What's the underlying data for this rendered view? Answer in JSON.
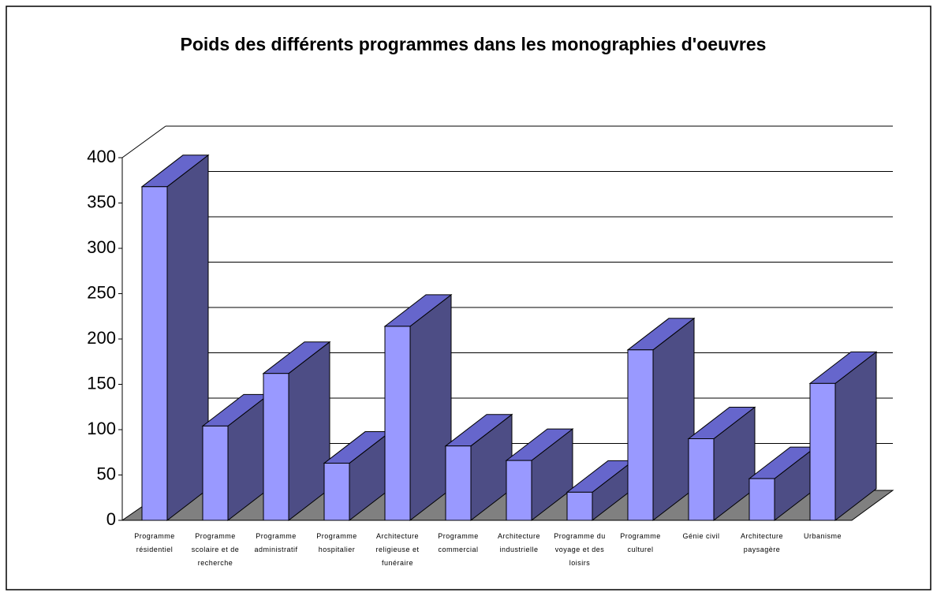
{
  "chart_data": {
    "type": "bar3d",
    "title": "Poids des différents programmes dans les monographies d'oeuvres",
    "categories": [
      "Programme résidentiel",
      "Programme scolaire et de recherche",
      "Programme administratif",
      "Programme hospitalier",
      "Architecture religieuse et funéraire",
      "Programme commercial",
      "Architecture industrielle",
      "Programme du voyage et des loisirs",
      "Programme culturel",
      "Génie civil",
      "Architecture paysagère",
      "Urbanisme"
    ],
    "values": [
      368,
      104,
      162,
      63,
      214,
      82,
      66,
      31,
      188,
      90,
      46,
      151
    ],
    "color": "#9999ff",
    "ylim": [
      0,
      400
    ],
    "yticks": [
      0,
      50,
      100,
      150,
      200,
      250,
      300,
      350,
      400
    ],
    "grid": true
  }
}
